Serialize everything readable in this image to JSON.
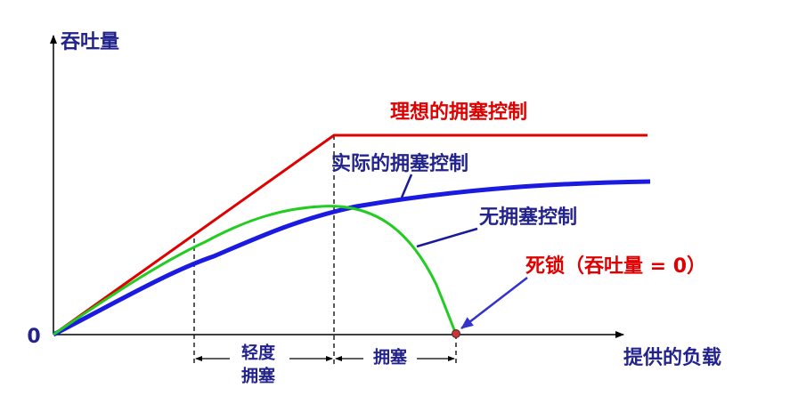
{
  "axes": {
    "y_label": "吞吐量",
    "origin": "0",
    "x_label": "提供的负载"
  },
  "curves": {
    "ideal": "理想的拥塞控制",
    "actual": "实际的拥塞控制",
    "none": "无拥塞控制",
    "deadlock": "死锁（吞吐量 = 0）"
  },
  "regions": {
    "light": [
      "轻度",
      "拥塞"
    ],
    "congestion": "拥塞"
  }
}
